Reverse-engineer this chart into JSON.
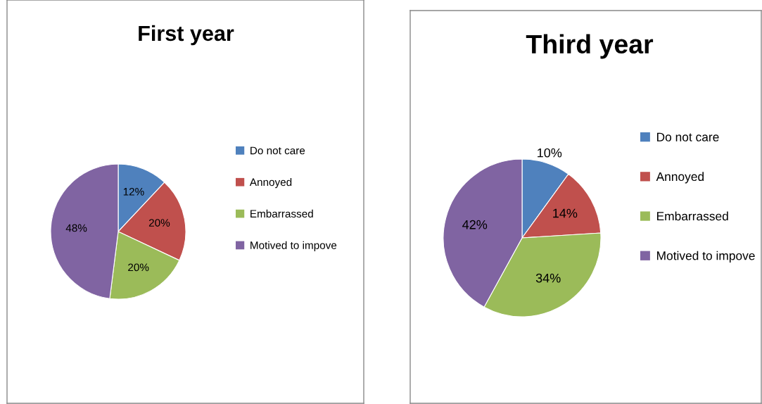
{
  "chart_data": [
    {
      "type": "pie",
      "title": "First year",
      "categories": [
        "Do not care",
        "Annoyed",
        "Embarrassed",
        "Motived to impove"
      ],
      "values": [
        12,
        20,
        20,
        48
      ],
      "colors": [
        "#4f81bd",
        "#c0504d",
        "#9bbb59",
        "#8064a2"
      ],
      "value_labels": [
        "12%",
        "20%",
        "20%",
        "48%"
      ],
      "legend": "right"
    },
    {
      "type": "pie",
      "title": "Third year",
      "categories": [
        "Do not care",
        "Annoyed",
        "Embarrassed",
        "Motived to impove"
      ],
      "values": [
        10,
        14,
        34,
        42
      ],
      "colors": [
        "#4f81bd",
        "#c0504d",
        "#9bbb59",
        "#8064a2"
      ],
      "value_labels": [
        "10%",
        "14%",
        "34%",
        "42%"
      ],
      "legend": "right"
    }
  ]
}
